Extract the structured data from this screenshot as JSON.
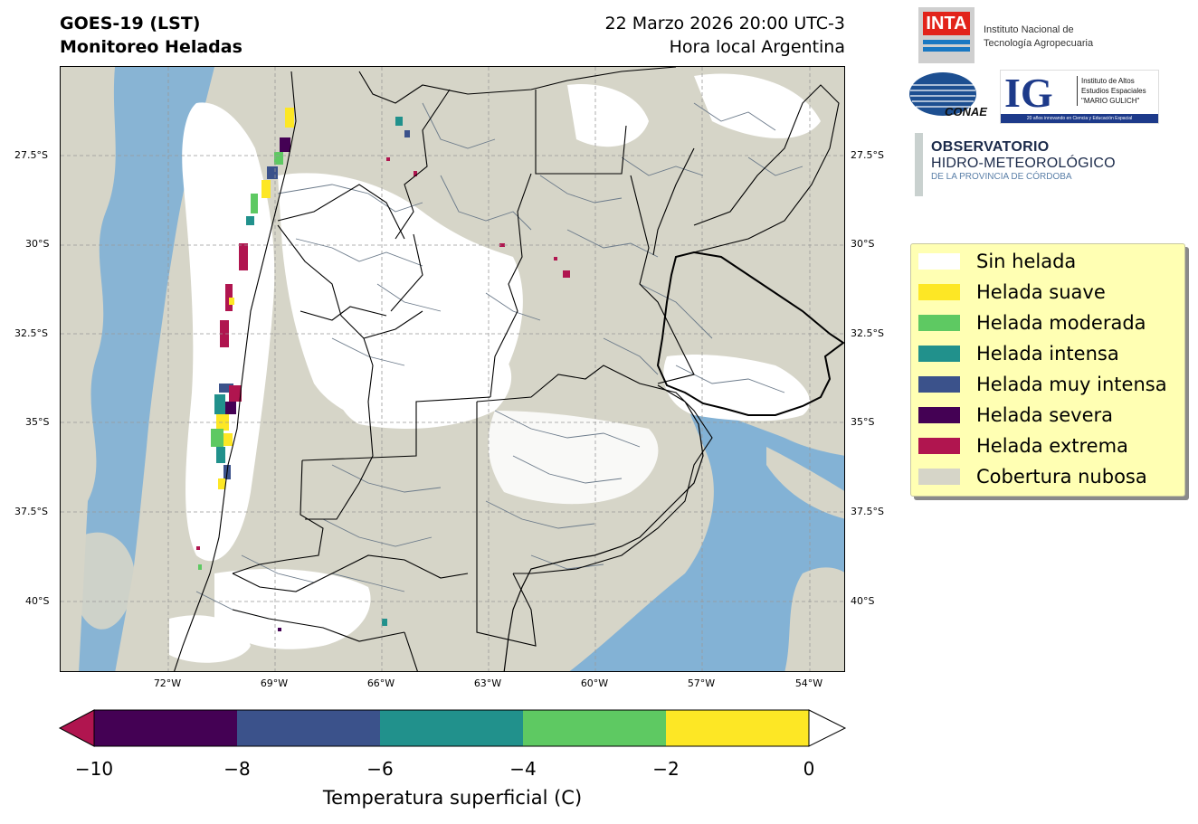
{
  "header": {
    "title_line1": "GOES-19 (LST)",
    "title_line2": "Monitoreo Heladas",
    "date_line1": "22 Marzo 2026 20:00 UTC-3",
    "date_line2": "Hora local Argentina"
  },
  "logos": {
    "inta_mark": "INTA",
    "inta_text_1": "Instituto Nacional de",
    "inta_text_2": "Tecnología Agropecuaria",
    "conae_mark": "CONAE",
    "ig_mark": "IG",
    "ig_text_1": "Instituto de Altos",
    "ig_text_2": "Estudios Espaciales",
    "ig_text_3": "\"MARIO GULICH\"",
    "ig_tagline": "20 años innovando en Ciencia y Educación Espacial",
    "obs_line1": "OBSERVATORIO",
    "obs_line2": "HIDRO-METEOROLÓGICO",
    "obs_line3": "DE LA PROVINCIA DE CÓRDOBA"
  },
  "map": {
    "lat_labels": [
      "27.5°S",
      "30°S",
      "32.5°S",
      "35°S",
      "37.5°S",
      "40°S"
    ],
    "lon_labels": [
      "72°W",
      "69°W",
      "66°W",
      "63°W",
      "60°W",
      "57°W",
      "54°W"
    ]
  },
  "legend": {
    "items": [
      {
        "label": "Sin helada",
        "color": "#ffffff"
      },
      {
        "label": "Helada suave",
        "color": "#fde725"
      },
      {
        "label": "Helada moderada",
        "color": "#5ec962"
      },
      {
        "label": "Helada intensa",
        "color": "#21918c"
      },
      {
        "label": "Helada muy intensa",
        "color": "#3b528b"
      },
      {
        "label": "Helada severa",
        "color": "#440154"
      },
      {
        "label": "Helada extrema",
        "color": "#b0154f"
      },
      {
        "label": "Cobertura nubosa",
        "color": "#d6d5c8"
      }
    ]
  },
  "colorbar": {
    "ticks": [
      "−10",
      "−8",
      "−6",
      "−4",
      "−2",
      "0"
    ],
    "bins": [
      {
        "from": -10,
        "to": -8,
        "color": "#440154"
      },
      {
        "from": -8,
        "to": -6,
        "color": "#3b528b"
      },
      {
        "from": -6,
        "to": -4,
        "color": "#21918c"
      },
      {
        "from": -4,
        "to": -2,
        "color": "#5ec962"
      },
      {
        "from": -2,
        "to": 0,
        "color": "#fde725"
      }
    ],
    "under_color": "#b0154f",
    "over_color": "#ffffff",
    "title": "Temperatura superficial (C)"
  },
  "colors": {
    "cloud": "#d6d5c8",
    "water": "#7aaed6",
    "border": "#000000",
    "dept_border": "#6b7a8a"
  }
}
